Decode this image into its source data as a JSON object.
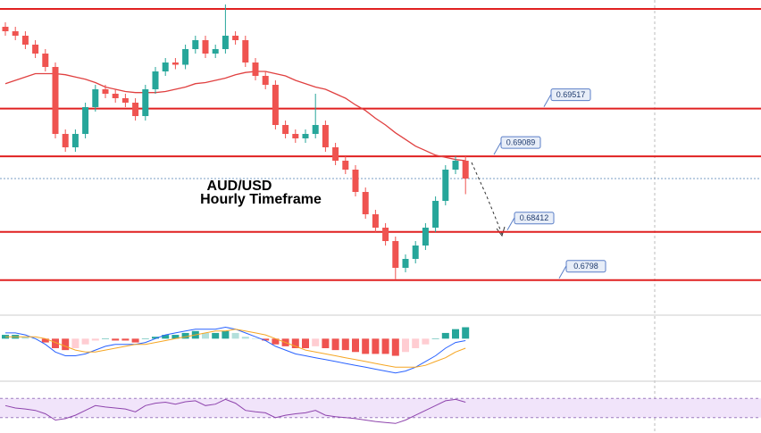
{
  "chart_data": {
    "type": "candlestick",
    "title": "AUD/USD",
    "subtitle": "Hourly Timeframe",
    "ylim": [
      0.6769,
      0.7049
    ],
    "open": [
      0.7025,
      0.7021,
      0.7017,
      0.7009,
      0.7001,
      0.6989,
      0.6929,
      0.6917,
      0.6929,
      0.6953,
      0.6969,
      0.6965,
      0.6961,
      0.6957,
      0.6945,
      0.6969,
      0.6985,
      0.6993,
      0.6991,
      0.7005,
      0.7013,
      0.7001,
      0.7005,
      0.7017,
      0.7013,
      0.6993,
      0.6981,
      0.6973,
      0.6937,
      0.6929,
      0.6925,
      0.6929,
      0.6937,
      0.6917,
      0.6905,
      0.6897,
      0.6877,
      0.6857,
      0.6845,
      0.6833,
      0.6809,
      0.6817,
      0.6829,
      0.6845,
      0.6869,
      0.6897,
      0.6905
    ],
    "high": [
      0.7029,
      0.7025,
      0.7021,
      0.7013,
      0.7005,
      0.6993,
      0.6933,
      0.6933,
      0.6957,
      0.6973,
      0.6973,
      0.6969,
      0.6965,
      0.6961,
      0.6973,
      0.6989,
      0.6997,
      0.6997,
      0.7009,
      0.7017,
      0.7017,
      0.7009,
      0.7045,
      0.7021,
      0.7017,
      0.6997,
      0.6985,
      0.6977,
      0.6941,
      0.6933,
      0.6933,
      0.6965,
      0.6941,
      0.6921,
      0.6909,
      0.6901,
      0.6881,
      0.6861,
      0.6849,
      0.6837,
      0.6821,
      0.6833,
      0.6849,
      0.6873,
      0.6901,
      0.6909,
      0.6909
    ],
    "low": [
      0.7017,
      0.7013,
      0.7005,
      0.6997,
      0.6985,
      0.6925,
      0.6913,
      0.6913,
      0.6925,
      0.6949,
      0.6961,
      0.6957,
      0.6953,
      0.6941,
      0.6941,
      0.6965,
      0.6981,
      0.6987,
      0.6987,
      0.7001,
      0.6997,
      0.6997,
      0.7001,
      0.7009,
      0.6989,
      0.6977,
      0.6969,
      0.6933,
      0.6925,
      0.6921,
      0.6921,
      0.6925,
      0.6913,
      0.6901,
      0.6893,
      0.6873,
      0.6853,
      0.6841,
      0.6829,
      0.6799,
      0.6805,
      0.6813,
      0.6825,
      0.6841,
      0.6865,
      0.6893,
      0.6875
    ],
    "close": [
      0.7021,
      0.7017,
      0.7009,
      0.7001,
      0.6989,
      0.6929,
      0.6917,
      0.6929,
      0.6953,
      0.6969,
      0.6965,
      0.6961,
      0.6957,
      0.6945,
      0.6969,
      0.6985,
      0.6993,
      0.6991,
      0.7005,
      0.7013,
      0.7001,
      0.7005,
      0.7017,
      0.7013,
      0.6993,
      0.6981,
      0.6973,
      0.6937,
      0.6929,
      0.6925,
      0.6929,
      0.6937,
      0.6917,
      0.6905,
      0.6897,
      0.6877,
      0.6857,
      0.6845,
      0.6833,
      0.6809,
      0.6817,
      0.6829,
      0.6845,
      0.6869,
      0.6897,
      0.6905,
      0.6889
    ],
    "up_color": "#26a69a",
    "down_color": "#ef5350",
    "moving_average": {
      "color": "#e04040",
      "values": [
        0.6974,
        0.6977,
        0.698,
        0.6983,
        0.6983,
        0.6983,
        0.6982,
        0.698,
        0.6978,
        0.6975,
        0.6971,
        0.6969,
        0.6967,
        0.6966,
        0.6966,
        0.6966,
        0.6967,
        0.6969,
        0.6971,
        0.6974,
        0.6975,
        0.6977,
        0.6979,
        0.6982,
        0.6984,
        0.6985,
        0.6985,
        0.6983,
        0.6981,
        0.6977,
        0.6974,
        0.6971,
        0.6969,
        0.6965,
        0.6961,
        0.6955,
        0.695,
        0.6943,
        0.6937,
        0.693,
        0.6924,
        0.6918,
        0.6914,
        0.691,
        0.6908,
        0.6906,
        0.6905
      ]
    },
    "top_level": 0.7041,
    "levels": [
      0.69517,
      0.69089,
      0.68412,
      0.6798
    ],
    "level_color": "#e02020",
    "macd": {
      "ylim": [
        -20,
        10
      ],
      "histogram": [
        2,
        2,
        1,
        0,
        -2,
        -5,
        -6,
        -5,
        -3,
        -1,
        0,
        -1,
        -1,
        -2,
        0,
        1,
        2,
        2,
        3,
        4,
        3,
        3,
        4,
        3,
        1,
        0,
        -1,
        -3,
        -4,
        -5,
        -5,
        -4,
        -5,
        -6,
        -6,
        -7,
        -8,
        -8,
        -8,
        -9,
        -7,
        -5,
        -3,
        0,
        3,
        5,
        6
      ],
      "macd_line": [
        3,
        3,
        2,
        0,
        -3,
        -7,
        -9,
        -9,
        -8,
        -6,
        -4,
        -3,
        -3,
        -3,
        -2,
        0,
        2,
        3,
        4,
        5,
        5,
        5,
        6,
        5,
        3,
        1,
        -1,
        -4,
        -6,
        -8,
        -9,
        -10,
        -11,
        -12,
        -13,
        -14,
        -15,
        -16,
        -17,
        -18,
        -17,
        -15,
        -12,
        -9,
        -5,
        -2,
        -1
      ],
      "signal_line": [
        1,
        1,
        1,
        1,
        0,
        -2,
        -4,
        -6,
        -7,
        -7,
        -6,
        -5,
        -4,
        -3,
        -3,
        -2,
        -1,
        0,
        1,
        2,
        3,
        4,
        4,
        5,
        4,
        3,
        2,
        0,
        -2,
        -4,
        -6,
        -7,
        -8,
        -9,
        -10,
        -11,
        -12,
        -13,
        -14,
        -15,
        -15,
        -15,
        -14,
        -12,
        -10,
        -7,
        -5
      ],
      "macd_color": "#2962ff",
      "signal_color": "#f5a623"
    },
    "rsi": {
      "ylim": [
        0,
        100
      ],
      "band": [
        30,
        70
      ],
      "color": "#8e44ad",
      "values": [
        55,
        50,
        48,
        45,
        38,
        25,
        28,
        35,
        45,
        55,
        52,
        50,
        48,
        42,
        55,
        60,
        62,
        58,
        63,
        65,
        55,
        58,
        68,
        60,
        45,
        42,
        40,
        30,
        35,
        38,
        40,
        45,
        35,
        32,
        30,
        28,
        25,
        22,
        20,
        18,
        25,
        35,
        45,
        55,
        65,
        68,
        62
      ]
    }
  }
}
